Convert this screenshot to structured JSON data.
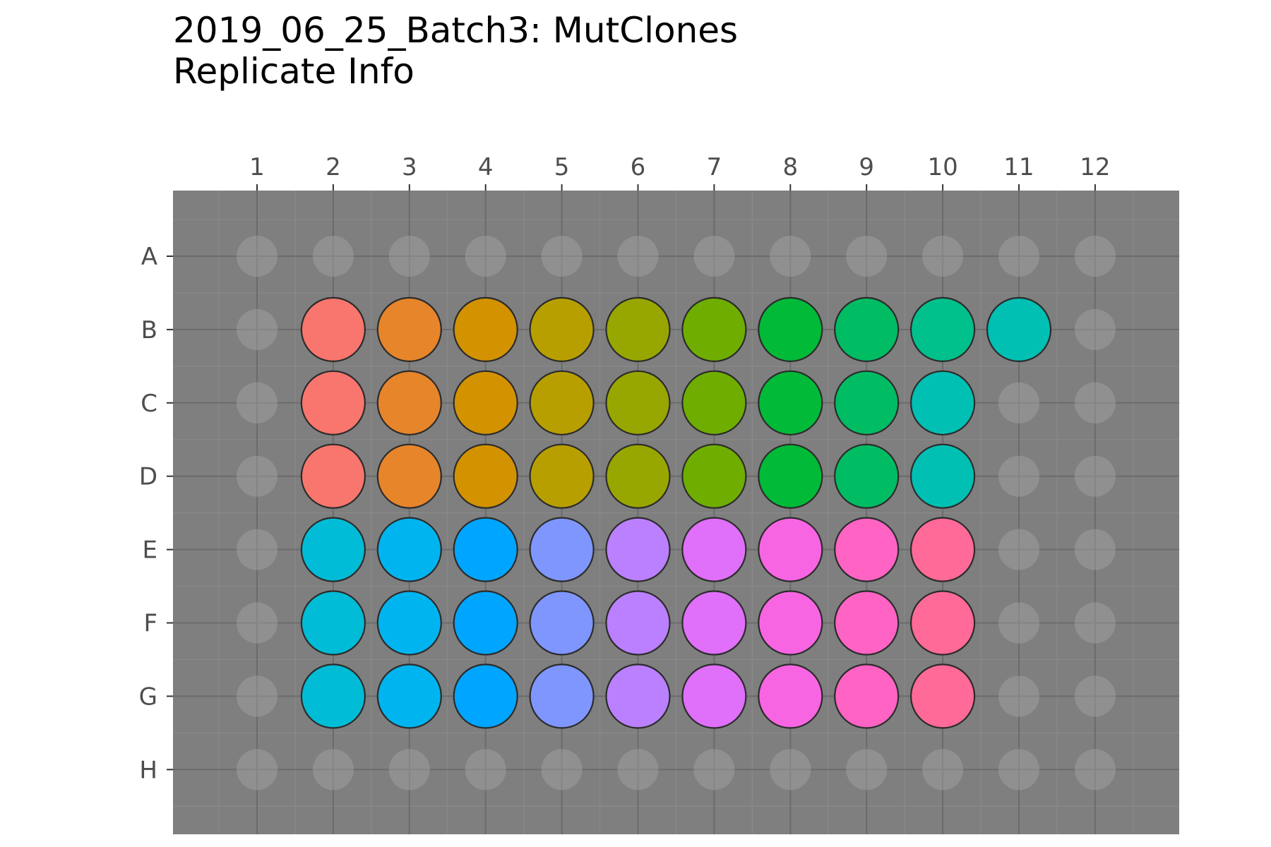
{
  "chart_data": {
    "type": "scatter",
    "title": "2019_06_25_Batch3: MutClones",
    "subtitle": "Replicate Info",
    "xlabel": "",
    "ylabel": "",
    "columns": [
      "1",
      "2",
      "3",
      "4",
      "5",
      "6",
      "7",
      "8",
      "9",
      "10",
      "11",
      "12"
    ],
    "rows": [
      "A",
      "B",
      "C",
      "D",
      "E",
      "F",
      "G",
      "H"
    ],
    "x_axis_position": "top",
    "y_axis_order": "A at top to H at bottom",
    "grid": true,
    "legend": "none",
    "panel_color": "#7f7f7f",
    "empty_well_color": "#a6a6a6",
    "wells": [
      {
        "row": "B",
        "col": 2,
        "color": "#F8766D"
      },
      {
        "row": "B",
        "col": 3,
        "color": "#E7852B"
      },
      {
        "row": "B",
        "col": 4,
        "color": "#D39200"
      },
      {
        "row": "B",
        "col": 5,
        "color": "#B79F00"
      },
      {
        "row": "B",
        "col": 6,
        "color": "#98A600"
      },
      {
        "row": "B",
        "col": 7,
        "color": "#6FAE00"
      },
      {
        "row": "B",
        "col": 8,
        "color": "#00BA38"
      },
      {
        "row": "B",
        "col": 9,
        "color": "#00BC63"
      },
      {
        "row": "B",
        "col": 10,
        "color": "#00C08B"
      },
      {
        "row": "B",
        "col": 11,
        "color": "#00BFB3"
      },
      {
        "row": "C",
        "col": 2,
        "color": "#F8766D"
      },
      {
        "row": "C",
        "col": 3,
        "color": "#E7852B"
      },
      {
        "row": "C",
        "col": 4,
        "color": "#D39200"
      },
      {
        "row": "C",
        "col": 5,
        "color": "#B79F00"
      },
      {
        "row": "C",
        "col": 6,
        "color": "#98A600"
      },
      {
        "row": "C",
        "col": 7,
        "color": "#6FAE00"
      },
      {
        "row": "C",
        "col": 8,
        "color": "#00BA38"
      },
      {
        "row": "C",
        "col": 9,
        "color": "#00BC63"
      },
      {
        "row": "C",
        "col": 10,
        "color": "#00BFB3"
      },
      {
        "row": "D",
        "col": 2,
        "color": "#F8766D"
      },
      {
        "row": "D",
        "col": 3,
        "color": "#E7852B"
      },
      {
        "row": "D",
        "col": 4,
        "color": "#D39200"
      },
      {
        "row": "D",
        "col": 5,
        "color": "#B79F00"
      },
      {
        "row": "D",
        "col": 6,
        "color": "#98A600"
      },
      {
        "row": "D",
        "col": 7,
        "color": "#6FAE00"
      },
      {
        "row": "D",
        "col": 8,
        "color": "#00BA38"
      },
      {
        "row": "D",
        "col": 9,
        "color": "#00BC63"
      },
      {
        "row": "D",
        "col": 10,
        "color": "#00BFB3"
      },
      {
        "row": "E",
        "col": 2,
        "color": "#00BCD6"
      },
      {
        "row": "E",
        "col": 3,
        "color": "#00B4EF"
      },
      {
        "row": "E",
        "col": 4,
        "color": "#00A5FF"
      },
      {
        "row": "E",
        "col": 5,
        "color": "#7F96FF"
      },
      {
        "row": "E",
        "col": 6,
        "color": "#BB80FF"
      },
      {
        "row": "E",
        "col": 7,
        "color": "#E06FF9"
      },
      {
        "row": "E",
        "col": 8,
        "color": "#F765E3"
      },
      {
        "row": "E",
        "col": 9,
        "color": "#FF63C4"
      },
      {
        "row": "E",
        "col": 10,
        "color": "#FF6A98"
      },
      {
        "row": "F",
        "col": 2,
        "color": "#00BCD6"
      },
      {
        "row": "F",
        "col": 3,
        "color": "#00B4EF"
      },
      {
        "row": "F",
        "col": 4,
        "color": "#00A5FF"
      },
      {
        "row": "F",
        "col": 5,
        "color": "#7F96FF"
      },
      {
        "row": "F",
        "col": 6,
        "color": "#BB80FF"
      },
      {
        "row": "F",
        "col": 7,
        "color": "#E06FF9"
      },
      {
        "row": "F",
        "col": 8,
        "color": "#F765E3"
      },
      {
        "row": "F",
        "col": 9,
        "color": "#FF63C4"
      },
      {
        "row": "F",
        "col": 10,
        "color": "#FF6A98"
      },
      {
        "row": "G",
        "col": 2,
        "color": "#00BCD6"
      },
      {
        "row": "G",
        "col": 3,
        "color": "#00B4EF"
      },
      {
        "row": "G",
        "col": 4,
        "color": "#00A5FF"
      },
      {
        "row": "G",
        "col": 5,
        "color": "#7F96FF"
      },
      {
        "row": "G",
        "col": 6,
        "color": "#BB80FF"
      },
      {
        "row": "G",
        "col": 7,
        "color": "#E06FF9"
      },
      {
        "row": "G",
        "col": 8,
        "color": "#F765E3"
      },
      {
        "row": "G",
        "col": 9,
        "color": "#FF63C4"
      },
      {
        "row": "G",
        "col": 10,
        "color": "#FF6A98"
      }
    ]
  }
}
